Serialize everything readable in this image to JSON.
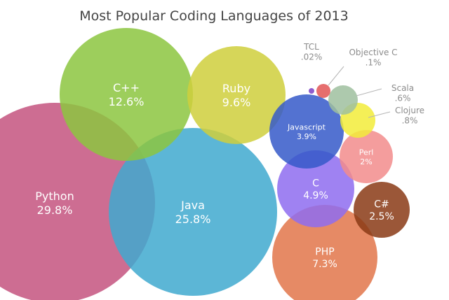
{
  "chart_data": {
    "type": "bubble",
    "title": "Most Popular Coding Languages of 2013",
    "series": [
      {
        "name": "Python",
        "value_label": "29.8%",
        "value": 29.8,
        "color": "#c4537f"
      },
      {
        "name": "Java",
        "value_label": "25.8%",
        "value": 25.8,
        "color": "#3fa9cf"
      },
      {
        "name": "C++",
        "value_label": "12.6%",
        "value": 12.6,
        "color": "#8cc63f"
      },
      {
        "name": "Ruby",
        "value_label": "9.6%",
        "value": 9.6,
        "color": "#cfcf3c"
      },
      {
        "name": "PHP",
        "value_label": "7.3%",
        "value": 7.3,
        "color": "#e2764a"
      },
      {
        "name": "C",
        "value_label": "4.9%",
        "value": 4.9,
        "color": "#8e6cf0"
      },
      {
        "name": "Javascript",
        "value_label": "3.9%",
        "value": 3.9,
        "color": "#3559c9"
      },
      {
        "name": "C#",
        "value_label": "2.5%",
        "value": 2.5,
        "color": "#8a3a15"
      },
      {
        "name": "Perl",
        "value_label": "2%",
        "value": 2,
        "color": "#f28c8c"
      },
      {
        "name": "Clojure",
        "value_label": ".8%",
        "value": 0.8,
        "color": "#f2ec3a"
      },
      {
        "name": "Scala",
        "value_label": ".6%",
        "value": 0.6,
        "color": "#9fbf9f"
      },
      {
        "name": "Objective C",
        "value_label": ".1%",
        "value": 0.1,
        "color": "#e25555"
      },
      {
        "name": "TCL",
        "value_label": ".02%",
        "value": 0.02,
        "color": "#7b3fc4"
      }
    ]
  }
}
